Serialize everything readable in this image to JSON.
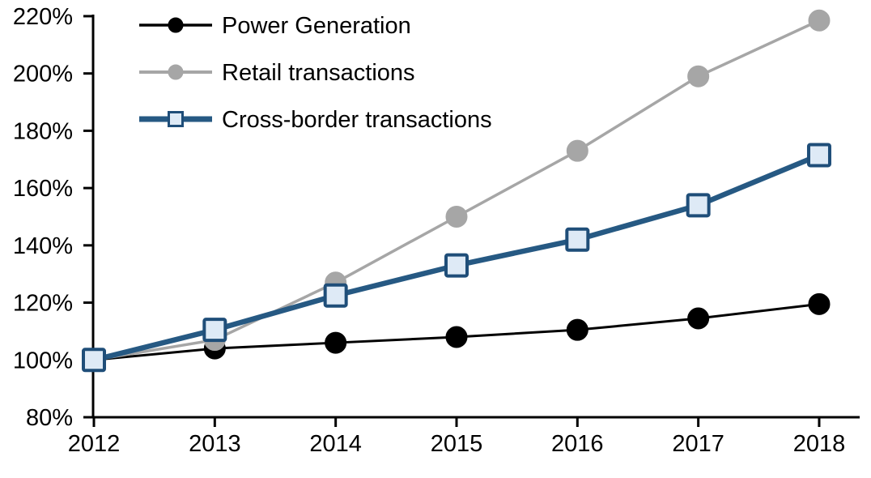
{
  "chart_data": {
    "type": "line",
    "title": "",
    "categories": [
      "2012",
      "2013",
      "2014",
      "2015",
      "2016",
      "2017",
      "2018"
    ],
    "series": [
      {
        "name": "Power Generation",
        "color": "#000000",
        "marker": "circle",
        "marker_fill": "#000000",
        "values": [
          100,
          104,
          106,
          108,
          110.5,
          114.5,
          119.5
        ]
      },
      {
        "name": "Retail transactions",
        "color": "#A6A6A6",
        "marker": "circle",
        "marker_fill": "#A6A6A6",
        "values": [
          100,
          107,
          127,
          150,
          173,
          199,
          218.5
        ]
      },
      {
        "name": "Cross-border transactions",
        "color": "#265983",
        "marker": "square",
        "marker_fill": "#DEEAF6",
        "marker_border": "#1F4E79",
        "values": [
          100,
          110.5,
          122.5,
          133,
          142,
          154,
          171.5
        ]
      }
    ],
    "xlabel": "",
    "ylabel": "",
    "ylim": [
      80,
      220
    ],
    "ytick_step": 20,
    "ytick_suffix": "%",
    "y_tick_labels": [
      "80%",
      "100%",
      "120%",
      "140%",
      "160%",
      "180%",
      "200%",
      "220%"
    ],
    "grid": false,
    "legend_position": "top-left",
    "axis_color": "#000000",
    "background_color": "#FFFFFF"
  }
}
